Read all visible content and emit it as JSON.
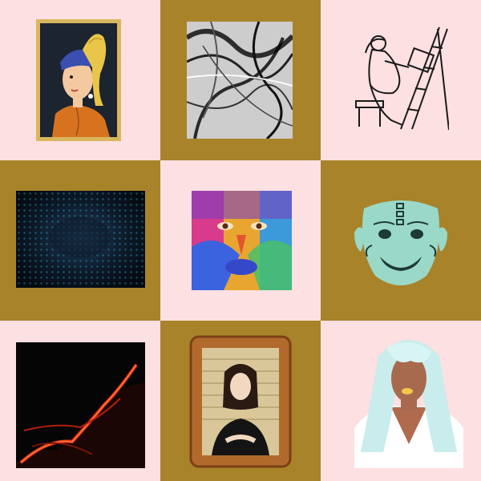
{
  "colors": {
    "pink": "#fde0e1",
    "mustard": "#a8832a",
    "gold_frame": "#d9b55e",
    "dark_navy": "#1c2430",
    "ink": "#1a1a1a",
    "mint": "#9ad9c8",
    "lava_red": "#e8321a",
    "ornate_frame": "#b26a2c"
  },
  "tiles": [
    {
      "icon": "pearl-earring-portrait-icon",
      "background": "pink"
    },
    {
      "icon": "smoke-abstract-icon",
      "background": "mustard"
    },
    {
      "icon": "painter-at-easel-icon",
      "background": "pink"
    },
    {
      "icon": "cyan-particle-tunnel-icon",
      "background": "mustard"
    },
    {
      "icon": "painted-face-icon",
      "background": "pink"
    },
    {
      "icon": "mint-mask-icon",
      "background": "mustard"
    },
    {
      "icon": "lava-flow-icon",
      "background": "pink"
    },
    {
      "icon": "framed-woman-portrait-icon",
      "background": "mustard"
    },
    {
      "icon": "white-hair-woman-icon",
      "background": "pink"
    }
  ]
}
